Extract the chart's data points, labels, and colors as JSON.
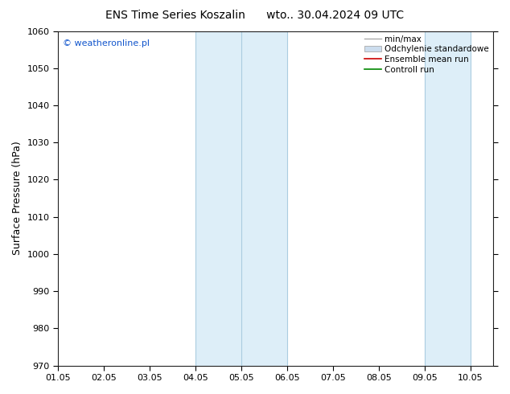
{
  "title": "ENS Time Series Koszalin      wto.. 30.04.2024 09 UTC",
  "ylabel": "Surface Pressure (hPa)",
  "ylim": [
    970,
    1060
  ],
  "yticks": [
    970,
    980,
    990,
    1000,
    1010,
    1020,
    1030,
    1040,
    1050,
    1060
  ],
  "xlim": [
    1,
    10.5
  ],
  "xtick_positions": [
    1,
    2,
    3,
    4,
    5,
    6,
    7,
    8,
    9,
    10
  ],
  "xtick_labels": [
    "01.05",
    "02.05",
    "03.05",
    "04.05",
    "05.05",
    "06.05",
    "07.05",
    "08.05",
    "09.05",
    "10.05"
  ],
  "shaded_bands": [
    {
      "xmin": 4.0,
      "xmax": 5.0,
      "color": "#ddeef8"
    },
    {
      "xmin": 5.0,
      "xmax": 6.0,
      "color": "#ddeef8"
    },
    {
      "xmin": 9.0,
      "xmax": 10.0,
      "color": "#ddeef8"
    }
  ],
  "band_divider_color": "#aacce0",
  "band_dividers": [
    4.0,
    5.0,
    6.0,
    9.0,
    10.0
  ],
  "copyright_text": "© weatheronline.pl",
  "copyright_color": "#1155cc",
  "legend_items": [
    {
      "label": "min/max",
      "color": "#aaaaaa",
      "lw": 1.0,
      "type": "line"
    },
    {
      "label": "Odchylenie standardowe",
      "color": "#ccddee",
      "edgecolor": "#aaaaaa",
      "type": "box"
    },
    {
      "label": "Ensemble mean run",
      "color": "#cc0000",
      "lw": 1.2,
      "type": "line"
    },
    {
      "label": "Controll run",
      "color": "#008800",
      "lw": 1.2,
      "type": "line"
    }
  ],
  "bg_color": "#ffffff",
  "plot_bg_color": "#ffffff",
  "title_fontsize": 10,
  "axis_label_fontsize": 9,
  "tick_fontsize": 8,
  "legend_fontsize": 7.5,
  "copyright_fontsize": 8
}
